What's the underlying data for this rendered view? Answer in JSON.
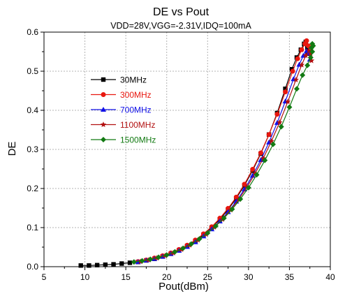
{
  "chart_data": {
    "type": "line",
    "title": "DE vs Pout",
    "subtitle": "VDD=28V,VGG=-2.31V,IDQ=100mA",
    "xlabel": "Pout(dBm)",
    "ylabel": "DE",
    "xlim": [
      5,
      40
    ],
    "ylim": [
      0,
      0.6
    ],
    "xticks": [
      5,
      10,
      15,
      20,
      25,
      30,
      35,
      40
    ],
    "yticks": [
      0.0,
      0.1,
      0.2,
      0.3,
      0.4,
      0.5,
      0.6
    ],
    "grid": true,
    "legend_position": "upper-left",
    "series": [
      {
        "name": "30MHz",
        "color": "#000000",
        "marker": "square",
        "points": [
          [
            9.5,
            0.003
          ],
          [
            10.5,
            0.003
          ],
          [
            11.5,
            0.004
          ],
          [
            12.5,
            0.005
          ],
          [
            13.5,
            0.006
          ],
          [
            14.5,
            0.008
          ],
          [
            15.5,
            0.01
          ],
          [
            16.5,
            0.012
          ],
          [
            17.5,
            0.016
          ],
          [
            18.5,
            0.02
          ],
          [
            19.5,
            0.026
          ],
          [
            20.5,
            0.033
          ],
          [
            21.5,
            0.042
          ],
          [
            22.5,
            0.053
          ],
          [
            23.5,
            0.066
          ],
          [
            24.5,
            0.082
          ],
          [
            25.5,
            0.1
          ],
          [
            26.5,
            0.121
          ],
          [
            27.5,
            0.146
          ],
          [
            28.5,
            0.175
          ],
          [
            29.5,
            0.208
          ],
          [
            30.5,
            0.246
          ],
          [
            31.5,
            0.289
          ],
          [
            32.5,
            0.338
          ],
          [
            33.5,
            0.393
          ],
          [
            34.5,
            0.455
          ],
          [
            35.3,
            0.505
          ],
          [
            35.9,
            0.535
          ],
          [
            36.4,
            0.555
          ],
          [
            36.8,
            0.57
          ],
          [
            37.0,
            0.575
          ],
          [
            37.2,
            0.56
          ],
          [
            37.3,
            0.545
          ]
        ]
      },
      {
        "name": "300MHz",
        "color": "#e8170f",
        "marker": "circle",
        "points": [
          [
            16.5,
            0.013
          ],
          [
            17.5,
            0.017
          ],
          [
            18.5,
            0.022
          ],
          [
            19.5,
            0.028
          ],
          [
            20.5,
            0.035
          ],
          [
            21.5,
            0.044
          ],
          [
            22.5,
            0.055
          ],
          [
            23.5,
            0.068
          ],
          [
            24.5,
            0.084
          ],
          [
            25.5,
            0.102
          ],
          [
            26.5,
            0.124
          ],
          [
            27.5,
            0.149
          ],
          [
            28.5,
            0.178
          ],
          [
            29.5,
            0.211
          ],
          [
            30.5,
            0.249
          ],
          [
            31.5,
            0.291
          ],
          [
            32.5,
            0.338
          ],
          [
            33.5,
            0.39
          ],
          [
            34.5,
            0.447
          ],
          [
            35.4,
            0.5
          ],
          [
            36.0,
            0.532
          ],
          [
            36.5,
            0.555
          ],
          [
            36.9,
            0.57
          ],
          [
            37.1,
            0.578
          ],
          [
            37.3,
            0.565
          ],
          [
            37.4,
            0.548
          ]
        ]
      },
      {
        "name": "700MHz",
        "color": "#1010e8",
        "marker": "triangle",
        "points": [
          [
            16.5,
            0.012
          ],
          [
            17.5,
            0.016
          ],
          [
            18.5,
            0.02
          ],
          [
            19.5,
            0.026
          ],
          [
            20.5,
            0.033
          ],
          [
            21.5,
            0.041
          ],
          [
            22.5,
            0.051
          ],
          [
            23.5,
            0.063
          ],
          [
            24.5,
            0.078
          ],
          [
            25.5,
            0.096
          ],
          [
            26.5,
            0.116
          ],
          [
            27.5,
            0.14
          ],
          [
            28.5,
            0.167
          ],
          [
            29.5,
            0.198
          ],
          [
            30.5,
            0.233
          ],
          [
            31.5,
            0.273
          ],
          [
            32.5,
            0.318
          ],
          [
            33.5,
            0.368
          ],
          [
            34.5,
            0.423
          ],
          [
            35.5,
            0.48
          ],
          [
            36.2,
            0.517
          ],
          [
            36.7,
            0.54
          ],
          [
            37.1,
            0.552
          ],
          [
            37.4,
            0.546
          ],
          [
            37.5,
            0.53
          ]
        ]
      },
      {
        "name": "1100MHz",
        "color": "#b21010",
        "marker": "star",
        "points": [
          [
            16.8,
            0.013
          ],
          [
            17.8,
            0.017
          ],
          [
            18.8,
            0.022
          ],
          [
            19.8,
            0.028
          ],
          [
            20.8,
            0.035
          ],
          [
            21.8,
            0.044
          ],
          [
            22.8,
            0.055
          ],
          [
            23.8,
            0.068
          ],
          [
            24.8,
            0.083
          ],
          [
            25.8,
            0.101
          ],
          [
            26.8,
            0.121
          ],
          [
            27.8,
            0.145
          ],
          [
            28.8,
            0.172
          ],
          [
            29.8,
            0.203
          ],
          [
            30.8,
            0.238
          ],
          [
            31.8,
            0.277
          ],
          [
            32.8,
            0.321
          ],
          [
            33.8,
            0.369
          ],
          [
            34.8,
            0.422
          ],
          [
            35.8,
            0.478
          ],
          [
            36.5,
            0.516
          ],
          [
            37.0,
            0.54
          ],
          [
            37.4,
            0.553
          ],
          [
            37.6,
            0.545
          ],
          [
            37.7,
            0.527
          ]
        ]
      },
      {
        "name": "1500MHz",
        "color": "#127a12",
        "marker": "diamond",
        "points": [
          [
            16.0,
            0.012
          ],
          [
            17.0,
            0.015
          ],
          [
            18.0,
            0.019
          ],
          [
            19.0,
            0.024
          ],
          [
            20.0,
            0.03
          ],
          [
            21.0,
            0.038
          ],
          [
            22.0,
            0.047
          ],
          [
            23.0,
            0.058
          ],
          [
            24.0,
            0.071
          ],
          [
            25.0,
            0.086
          ],
          [
            26.0,
            0.104
          ],
          [
            27.0,
            0.124
          ],
          [
            28.0,
            0.147
          ],
          [
            29.0,
            0.173
          ],
          [
            30.0,
            0.202
          ],
          [
            31.0,
            0.235
          ],
          [
            32.0,
            0.272
          ],
          [
            33.0,
            0.313
          ],
          [
            34.0,
            0.358
          ],
          [
            35.0,
            0.408
          ],
          [
            35.9,
            0.455
          ],
          [
            36.6,
            0.49
          ],
          [
            37.2,
            0.515
          ],
          [
            37.6,
            0.535
          ],
          [
            37.8,
            0.55
          ],
          [
            37.9,
            0.565
          ],
          [
            37.8,
            0.57
          ],
          [
            37.7,
            0.56
          ]
        ]
      }
    ]
  }
}
